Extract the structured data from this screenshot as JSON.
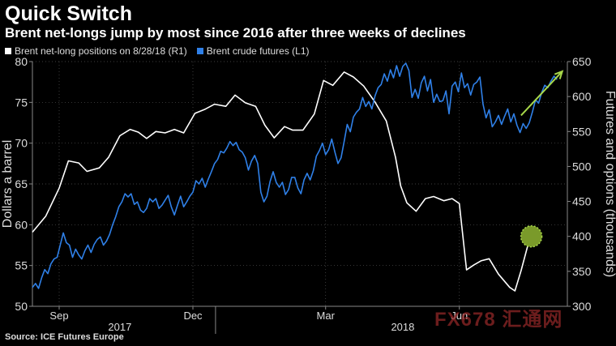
{
  "title": "Quick Switch",
  "subtitle": "Brent net-longs jump by most since 2016 after three weeks of declines",
  "legend": [
    {
      "label": "Brent net-long positions on 8/28/18 (R1)",
      "color": "#ffffff"
    },
    {
      "label": "Brent crude futures (L1)",
      "color": "#2f80e8"
    }
  ],
  "source": "Source: ICE Futures Europe",
  "watermark": "FX678 汇通网",
  "chart_data": {
    "type": "line",
    "y_left": {
      "label": "Dollars a barrel",
      "min": 50,
      "max": 80,
      "ticks": [
        50,
        55,
        60,
        65,
        70,
        75,
        80
      ]
    },
    "y_right": {
      "label": "Futures and options (thousands)",
      "min": 300,
      "max": 650,
      "ticks": [
        300,
        350,
        400,
        450,
        500,
        550,
        600,
        650
      ]
    },
    "x_range": [
      0,
      52
    ],
    "month_ticks": [
      {
        "label": "Sep",
        "x": 2.6
      },
      {
        "label": "Dec",
        "x": 15.6
      },
      {
        "label": "Mar",
        "x": 28.5
      },
      {
        "label": "Jun",
        "x": 41.5
      }
    ],
    "year_labels": [
      {
        "label": "2017",
        "x": 8.5
      },
      {
        "label": "2018",
        "x": 36
      }
    ],
    "grid": true,
    "series": [
      {
        "name": "Brent net-long positions on 8/28/18 (R1)",
        "axis": "right",
        "color": "#ffffff",
        "values": [
          [
            0,
            406
          ],
          [
            1.3,
            429
          ],
          [
            2.6,
            469
          ],
          [
            3.5,
            508
          ],
          [
            4.5,
            505
          ],
          [
            5.3,
            493
          ],
          [
            6.5,
            498
          ],
          [
            7.4,
            513
          ],
          [
            8.5,
            544
          ],
          [
            9.5,
            553
          ],
          [
            10.3,
            549
          ],
          [
            11.1,
            540
          ],
          [
            12,
            550
          ],
          [
            12.9,
            548
          ],
          [
            13.8,
            553
          ],
          [
            14.7,
            548
          ],
          [
            15.8,
            576
          ],
          [
            16.8,
            582
          ],
          [
            17.7,
            589
          ],
          [
            18.8,
            586
          ],
          [
            19.7,
            602
          ],
          [
            20.7,
            591
          ],
          [
            21.7,
            586
          ],
          [
            22.6,
            559
          ],
          [
            23.5,
            541
          ],
          [
            24.5,
            557
          ],
          [
            25.3,
            552
          ],
          [
            26.3,
            552
          ],
          [
            27.4,
            575
          ],
          [
            28.3,
            623
          ],
          [
            29.2,
            616
          ],
          [
            30.3,
            635
          ],
          [
            31.2,
            628
          ],
          [
            32.2,
            615
          ],
          [
            33.3,
            592
          ],
          [
            34.4,
            565
          ],
          [
            35.3,
            513
          ],
          [
            35.8,
            472
          ],
          [
            36.4,
            448
          ],
          [
            37.3,
            436
          ],
          [
            38.2,
            454
          ],
          [
            39,
            457
          ],
          [
            40,
            451
          ],
          [
            40.8,
            454
          ],
          [
            41.5,
            447
          ],
          [
            42.2,
            352
          ],
          [
            42.9,
            359
          ],
          [
            43.6,
            365
          ],
          [
            44.4,
            368
          ],
          [
            45.3,
            346
          ],
          [
            46.4,
            327
          ],
          [
            46.9,
            322
          ],
          [
            47.5,
            351
          ],
          [
            48.1,
            384
          ],
          [
            48.5,
            400
          ]
        ]
      },
      {
        "name": "Brent crude futures (L1)",
        "axis": "left",
        "color": "#2f80e8",
        "values": [
          [
            0,
            52.3
          ],
          [
            0.3,
            52.8
          ],
          [
            0.6,
            52.2
          ],
          [
            0.9,
            53.5
          ],
          [
            1.2,
            54.5
          ],
          [
            1.5,
            54
          ],
          [
            1.8,
            55.2
          ],
          [
            2.1,
            55.8
          ],
          [
            2.4,
            56
          ],
          [
            2.7,
            57.5
          ],
          [
            3,
            59
          ],
          [
            3.3,
            57.8
          ],
          [
            3.6,
            57.5
          ],
          [
            3.9,
            56
          ],
          [
            4.2,
            57
          ],
          [
            4.5,
            56.3
          ],
          [
            4.8,
            55.8
          ],
          [
            5.1,
            56.8
          ],
          [
            5.4,
            57.5
          ],
          [
            5.7,
            56.6
          ],
          [
            6,
            57.6
          ],
          [
            6.3,
            58.2
          ],
          [
            6.6,
            58.5
          ],
          [
            6.9,
            57.5
          ],
          [
            7.2,
            58
          ],
          [
            7.5,
            58.8
          ],
          [
            7.8,
            60
          ],
          [
            8.1,
            61
          ],
          [
            8.4,
            62.2
          ],
          [
            8.7,
            62.8
          ],
          [
            9,
            63.8
          ],
          [
            9.3,
            63.4
          ],
          [
            9.6,
            63.8
          ],
          [
            9.9,
            62.5
          ],
          [
            10.2,
            62.8
          ],
          [
            10.5,
            61.8
          ],
          [
            10.8,
            61.5
          ],
          [
            11.1,
            62
          ],
          [
            11.4,
            63.2
          ],
          [
            11.7,
            62.8
          ],
          [
            12,
            63.2
          ],
          [
            12.3,
            62
          ],
          [
            12.6,
            62.4
          ],
          [
            12.9,
            63
          ],
          [
            13.2,
            63.6
          ],
          [
            13.5,
            62.2
          ],
          [
            13.8,
            61.2
          ],
          [
            14.1,
            62.4
          ],
          [
            14.4,
            63.5
          ],
          [
            14.7,
            62.2
          ],
          [
            15,
            62.8
          ],
          [
            15.3,
            63.5
          ],
          [
            15.6,
            64
          ],
          [
            15.9,
            65.4
          ],
          [
            16.2,
            65
          ],
          [
            16.5,
            65.7
          ],
          [
            16.8,
            64.6
          ],
          [
            17.1,
            65.6
          ],
          [
            17.4,
            66.5
          ],
          [
            17.7,
            67.5
          ],
          [
            18,
            68
          ],
          [
            18.3,
            69
          ],
          [
            18.6,
            68.8
          ],
          [
            18.9,
            69.4
          ],
          [
            19.2,
            70.2
          ],
          [
            19.5,
            69.7
          ],
          [
            19.8,
            70.1
          ],
          [
            20.1,
            69.2
          ],
          [
            20.4,
            68.9
          ],
          [
            20.7,
            68.2
          ],
          [
            21,
            66.7
          ],
          [
            21.3,
            67.8
          ],
          [
            21.6,
            68.5
          ],
          [
            21.9,
            67.5
          ],
          [
            22.2,
            64
          ],
          [
            22.5,
            62.8
          ],
          [
            22.8,
            63.5
          ],
          [
            23.1,
            65.3
          ],
          [
            23.4,
            66.5
          ],
          [
            23.7,
            65.2
          ],
          [
            24,
            64.6
          ],
          [
            24.3,
            65.2
          ],
          [
            24.6,
            63.7
          ],
          [
            24.9,
            64.3
          ],
          [
            25.2,
            65.8
          ],
          [
            25.5,
            65.8
          ],
          [
            25.8,
            64.5
          ],
          [
            26.1,
            63.8
          ],
          [
            26.4,
            65.5
          ],
          [
            26.7,
            66.3
          ],
          [
            27,
            65.5
          ],
          [
            27.3,
            66.6
          ],
          [
            27.6,
            68.4
          ],
          [
            27.9,
            69.1
          ],
          [
            28.2,
            70
          ],
          [
            28.5,
            68.6
          ],
          [
            28.8,
            69.2
          ],
          [
            29.1,
            70.5
          ],
          [
            29.4,
            68.9
          ],
          [
            29.7,
            67.5
          ],
          [
            30,
            68.2
          ],
          [
            30.3,
            70.2
          ],
          [
            30.6,
            72.3
          ],
          [
            30.9,
            71.4
          ],
          [
            31.2,
            73.2
          ],
          [
            31.5,
            73.8
          ],
          [
            31.8,
            74.2
          ],
          [
            32.1,
            75.6
          ],
          [
            32.4,
            74.5
          ],
          [
            32.7,
            75.1
          ],
          [
            33,
            74.2
          ],
          [
            33.3,
            75.8
          ],
          [
            33.6,
            76.8
          ],
          [
            33.9,
            77.2
          ],
          [
            34.2,
            78.5
          ],
          [
            34.5,
            77.6
          ],
          [
            34.8,
            79
          ],
          [
            35.1,
            78
          ],
          [
            35.4,
            79.5
          ],
          [
            35.7,
            78.2
          ],
          [
            36,
            79.4
          ],
          [
            36.3,
            79.8
          ],
          [
            36.6,
            78.9
          ],
          [
            36.9,
            75.6
          ],
          [
            37.2,
            76.6
          ],
          [
            37.5,
            75.5
          ],
          [
            37.8,
            77.4
          ],
          [
            38.1,
            78.2
          ],
          [
            38.4,
            76.4
          ],
          [
            38.7,
            77.8
          ],
          [
            39,
            75
          ],
          [
            39.3,
            76
          ],
          [
            39.6,
            75.1
          ],
          [
            39.9,
            75.2
          ],
          [
            40.2,
            76.4
          ],
          [
            40.5,
            73.6
          ],
          [
            40.8,
            77
          ],
          [
            41.1,
            77.5
          ],
          [
            41.4,
            76.3
          ],
          [
            41.7,
            78.6
          ],
          [
            42,
            76.8
          ],
          [
            42.3,
            77.3
          ],
          [
            42.6,
            75.9
          ],
          [
            42.9,
            77.2
          ],
          [
            43.2,
            77.5
          ],
          [
            43.5,
            78.1
          ],
          [
            43.8,
            74.8
          ],
          [
            44.1,
            73.1
          ],
          [
            44.4,
            74.1
          ],
          [
            44.7,
            72
          ],
          [
            45,
            72.6
          ],
          [
            45.3,
            73.4
          ],
          [
            45.6,
            72.3
          ],
          [
            45.9,
            73.3
          ],
          [
            46.2,
            74.2
          ],
          [
            46.5,
            72.6
          ],
          [
            46.8,
            73.6
          ],
          [
            47.1,
            72.2
          ],
          [
            47.4,
            71.3
          ],
          [
            47.7,
            72.4
          ],
          [
            48,
            71.8
          ],
          [
            48.3,
            72.5
          ],
          [
            48.6,
            73.8
          ],
          [
            48.9,
            75.3
          ],
          [
            49.2,
            74.9
          ],
          [
            49.5,
            76.2
          ],
          [
            49.8,
            77.1
          ],
          [
            50.1,
            76.8
          ],
          [
            50.4,
            77.6
          ],
          [
            50.7,
            78.2
          ],
          [
            51,
            77.8
          ]
        ]
      }
    ],
    "annotations": [
      {
        "type": "arrow",
        "color": "#a8d84a",
        "from": [
          47.5,
          73.4
        ],
        "to": [
          51.5,
          78.8
        ],
        "axis": "left"
      },
      {
        "type": "circle-marker",
        "color": "#a8d84a",
        "x": 48.5,
        "y": 400,
        "axis": "right"
      }
    ]
  }
}
